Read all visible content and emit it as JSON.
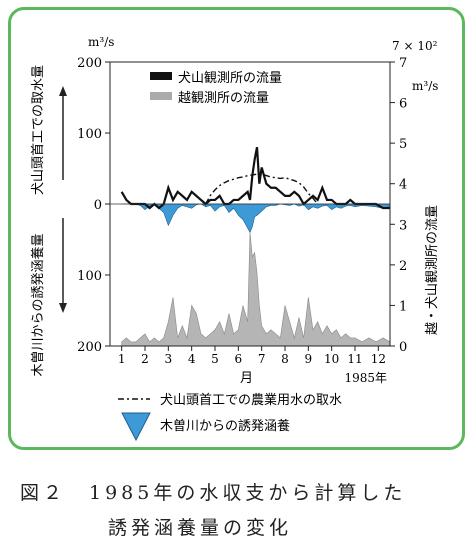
{
  "chart_data": {
    "type": "line",
    "left_axis": {
      "unit": "m³/s",
      "ticks": [
        {
          "label": "200",
          "v": 200
        },
        {
          "label": "100",
          "v": 100
        },
        {
          "label": "0",
          "v": 0
        },
        {
          "label": "100",
          "v": -100
        },
        {
          "label": "200",
          "v": -200
        }
      ],
      "range": [
        -200,
        200
      ]
    },
    "right_axis": {
      "unit_top": "7 × 10²",
      "unit_bottom": "m³/s",
      "ticks": [
        "7",
        "6",
        "5",
        "4",
        "3",
        "2",
        "1",
        "0"
      ],
      "range": [
        0,
        7
      ]
    },
    "upper_label": "犬山頭首工での取水量",
    "lower_label": "木曽川からの誘発涵養量",
    "right_label": "越・犬山観測所の流量",
    "x_ticks": [
      "1",
      "2",
      "3",
      "4",
      "5",
      "6",
      "7",
      "8",
      "9",
      "10",
      "11",
      "12"
    ],
    "x_label": "月",
    "year_label": "1985年",
    "legend_top": [
      {
        "label": "犬山観測所の流量",
        "color": "#111111"
      },
      {
        "label": "越観測所の流量",
        "color": "#aaaaaa"
      }
    ],
    "legend_bottom": [
      {
        "label": "犬山頭首工での農業用水の取水",
        "style": "dash-dot"
      },
      {
        "label": "木曽川からの誘発涵養",
        "style": "blue-triangle"
      }
    ],
    "series": [
      {
        "name": "犬山観測所の流量",
        "axis": "right",
        "x": [
          1.0,
          1.2,
          1.4,
          1.6,
          1.8,
          2.0,
          2.2,
          2.4,
          2.6,
          2.8,
          3.0,
          3.2,
          3.4,
          3.6,
          3.8,
          4.0,
          4.2,
          4.4,
          4.6,
          4.8,
          5.0,
          5.2,
          5.4,
          5.6,
          5.8,
          6.0,
          6.2,
          6.4,
          6.5,
          6.6,
          6.7,
          6.8,
          6.9,
          7.0,
          7.2,
          7.4,
          7.6,
          7.8,
          8.0,
          8.2,
          8.4,
          8.6,
          8.8,
          9.0,
          9.2,
          9.4,
          9.6,
          9.8,
          10.0,
          10.2,
          10.4,
          10.6,
          10.8,
          11.0,
          11.3,
          11.6,
          11.9,
          12.2,
          12.5
        ],
        "values": [
          3.8,
          3.6,
          3.5,
          3.5,
          3.5,
          3.5,
          3.4,
          3.5,
          3.4,
          3.5,
          3.9,
          3.6,
          3.8,
          3.7,
          3.6,
          3.8,
          3.7,
          3.6,
          3.5,
          3.6,
          3.6,
          3.7,
          3.5,
          3.5,
          3.6,
          3.6,
          3.7,
          3.8,
          3.6,
          4.2,
          4.6,
          4.9,
          4.0,
          4.4,
          4.0,
          3.9,
          3.9,
          3.8,
          3.7,
          3.7,
          3.8,
          3.7,
          3.5,
          3.6,
          3.7,
          3.6,
          3.9,
          3.6,
          3.6,
          3.5,
          3.5,
          3.5,
          3.6,
          3.5,
          3.5,
          3.5,
          3.5,
          3.4,
          3.4
        ]
      },
      {
        "name": "越観測所の流量",
        "axis": "right",
        "x": [
          1.0,
          1.2,
          1.4,
          1.6,
          1.8,
          2.0,
          2.2,
          2.4,
          2.6,
          2.8,
          3.0,
          3.2,
          3.4,
          3.6,
          3.8,
          4.0,
          4.2,
          4.4,
          4.6,
          4.8,
          5.0,
          5.2,
          5.4,
          5.6,
          5.8,
          6.0,
          6.2,
          6.4,
          6.5,
          6.6,
          6.7,
          6.8,
          6.9,
          7.0,
          7.2,
          7.4,
          7.6,
          7.8,
          8.0,
          8.2,
          8.4,
          8.6,
          8.8,
          9.0,
          9.2,
          9.4,
          9.6,
          9.8,
          10.0,
          10.2,
          10.4,
          10.6,
          10.8,
          11.0,
          11.3,
          11.6,
          11.9,
          12.2,
          12.5
        ],
        "values": [
          0.1,
          0.2,
          0.1,
          0.1,
          0.2,
          0.3,
          0.1,
          0.2,
          0.1,
          0.2,
          0.6,
          1.2,
          0.2,
          0.5,
          0.2,
          1.0,
          0.8,
          0.3,
          0.2,
          0.3,
          0.4,
          0.6,
          0.3,
          0.8,
          0.3,
          0.4,
          1.0,
          0.6,
          2.8,
          2.2,
          2.3,
          1.8,
          1.0,
          0.5,
          0.3,
          0.4,
          0.3,
          0.2,
          1.0,
          0.6,
          0.2,
          0.7,
          0.2,
          1.2,
          0.4,
          0.6,
          0.3,
          0.5,
          0.3,
          0.4,
          0.2,
          0.3,
          0.2,
          0.2,
          0.1,
          0.2,
          0.1,
          0.2,
          0.1
        ]
      },
      {
        "name": "犬山頭首工での農業用水の取水",
        "axis": "left",
        "x": [
          4.6,
          4.8,
          5.0,
          5.2,
          5.4,
          5.6,
          5.8,
          6.0,
          6.2,
          6.4,
          6.6,
          6.8,
          7.0,
          7.2,
          7.4,
          7.6,
          7.8,
          8.0,
          8.2,
          8.4,
          8.6,
          8.8,
          9.0,
          9.2,
          9.4
        ],
        "values": [
          0,
          12,
          20,
          26,
          30,
          33,
          35,
          37,
          38,
          40,
          41,
          42,
          42,
          40,
          38,
          37,
          36,
          37,
          35,
          33,
          30,
          24,
          15,
          8,
          0
        ]
      },
      {
        "name": "木曽川からの誘発涵養",
        "axis": "left",
        "x": [
          1.0,
          1.3,
          1.6,
          1.8,
          2.0,
          2.2,
          2.4,
          2.6,
          2.8,
          3.0,
          3.2,
          3.4,
          3.6,
          3.8,
          4.0,
          4.2,
          4.4,
          4.6,
          4.8,
          5.0,
          5.2,
          5.4,
          5.6,
          5.8,
          6.0,
          6.2,
          6.3,
          6.5,
          6.6,
          6.7,
          6.8,
          7.0,
          7.2,
          7.4,
          7.6,
          7.8,
          8.0,
          8.2,
          8.4,
          8.6,
          8.8,
          9.0,
          9.2,
          9.4,
          9.6,
          9.8,
          10.0,
          10.2,
          10.4,
          10.6,
          10.8,
          11.0,
          11.3,
          11.6,
          11.9,
          12.2,
          12.5
        ],
        "values": [
          0,
          0,
          0,
          -2,
          -8,
          -3,
          0,
          -6,
          -12,
          -30,
          -16,
          -6,
          -2,
          -4,
          -6,
          -1,
          0,
          -4,
          -2,
          -10,
          -4,
          -2,
          -12,
          -6,
          -16,
          -22,
          -28,
          -40,
          -32,
          -18,
          -16,
          -10,
          -4,
          -2,
          -2,
          0,
          -1,
          -2,
          0,
          -3,
          -1,
          -8,
          -4,
          -6,
          -3,
          -2,
          -8,
          -4,
          -6,
          -3,
          -2,
          -4,
          -2,
          -3,
          -4,
          -6,
          -3
        ]
      }
    ]
  },
  "caption": {
    "line1": "図２　1985年の水収支から計算した",
    "line2": "誘発涵養量の変化"
  }
}
